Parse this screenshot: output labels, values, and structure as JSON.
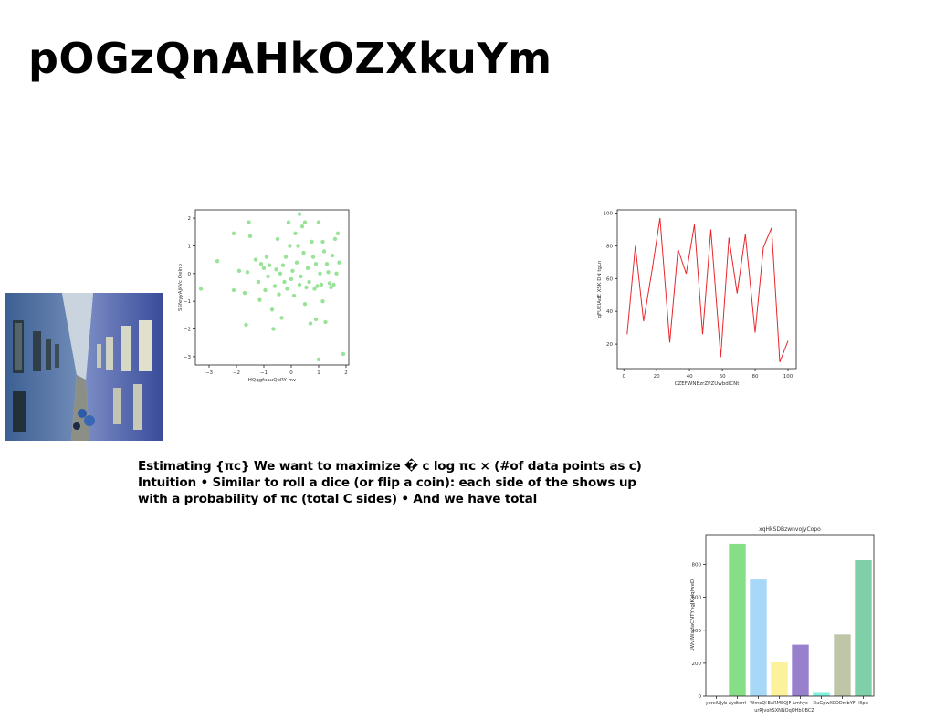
{
  "slide": {
    "title": "pOGzQnAHkOZXkuYm",
    "body_text": "Estimating {πc} We want to maximize � c log πc × (#of data points as c) Intuition • Similar to roll a dice (or flip a coin): each side of the shows up with a probability of πc (total C sides) • And we have total"
  },
  "colors": {
    "scatter_point": "#7fdc7f",
    "line": "#e8262b",
    "bars": [
      "#7fd0a8",
      "#86df86",
      "#a8d8f8",
      "#fbf29b",
      "#9880cc",
      "#7df2dc",
      "#bfc6a8"
    ]
  },
  "chart_data": [
    {
      "type": "scatter",
      "title": "",
      "xlabel": "HQqgfxauQpRY mv",
      "ylabel": "SSfeyyAjkVc Qelnb",
      "xlim": [
        -3.5,
        2.1
      ],
      "ylim": [
        -3.3,
        2.3
      ],
      "xticks": [
        -3,
        -2,
        -1,
        0,
        1,
        2
      ],
      "yticks": [
        -3,
        -2,
        -1,
        0,
        1,
        2
      ],
      "xtick_labels": [
        "−3",
        "−2",
        "−1",
        "0",
        "1",
        "2"
      ],
      "ytick_labels": [
        "−3",
        "−2",
        "−1",
        "0",
        "1",
        "2"
      ],
      "points": [
        [
          -3.3,
          -0.55
        ],
        [
          -2.7,
          0.45
        ],
        [
          -2.1,
          1.45
        ],
        [
          -2.1,
          -0.6
        ],
        [
          -1.9,
          0.1
        ],
        [
          -1.7,
          -0.7
        ],
        [
          -1.65,
          -1.85
        ],
        [
          -1.6,
          0.05
        ],
        [
          -1.5,
          1.35
        ],
        [
          -1.55,
          1.85
        ],
        [
          -1.3,
          0.5
        ],
        [
          -1.2,
          -0.3
        ],
        [
          -1.15,
          -0.95
        ],
        [
          -1.1,
          0.35
        ],
        [
          -1.0,
          0.2
        ],
        [
          -0.95,
          -0.6
        ],
        [
          -0.9,
          0.6
        ],
        [
          -0.85,
          -0.1
        ],
        [
          -0.8,
          0.3
        ],
        [
          -0.7,
          -1.3
        ],
        [
          -0.65,
          -2.0
        ],
        [
          -0.6,
          -0.45
        ],
        [
          -0.55,
          0.15
        ],
        [
          -0.5,
          1.25
        ],
        [
          -0.45,
          -0.75
        ],
        [
          -0.4,
          0.0
        ],
        [
          -0.35,
          -1.6
        ],
        [
          -0.3,
          0.3
        ],
        [
          -0.25,
          -0.3
        ],
        [
          -0.2,
          0.6
        ],
        [
          -0.15,
          -0.55
        ],
        [
          -0.1,
          1.85
        ],
        [
          -0.05,
          1.0
        ],
        [
          0.0,
          -0.2
        ],
        [
          0.05,
          0.1
        ],
        [
          0.1,
          -0.8
        ],
        [
          0.15,
          1.45
        ],
        [
          0.2,
          0.4
        ],
        [
          0.25,
          1.0
        ],
        [
          0.3,
          -0.4
        ],
        [
          0.3,
          2.15
        ],
        [
          0.35,
          -0.1
        ],
        [
          0.4,
          1.7
        ],
        [
          0.45,
          0.75
        ],
        [
          0.5,
          -1.1
        ],
        [
          0.5,
          1.85
        ],
        [
          0.55,
          -0.5
        ],
        [
          0.6,
          0.2
        ],
        [
          0.65,
          -0.3
        ],
        [
          0.7,
          -1.8
        ],
        [
          0.75,
          1.15
        ],
        [
          0.8,
          0.6
        ],
        [
          0.85,
          -0.55
        ],
        [
          0.9,
          -1.65
        ],
        [
          0.9,
          0.35
        ],
        [
          0.95,
          -0.45
        ],
        [
          1.0,
          1.85
        ],
        [
          1.0,
          -3.1
        ],
        [
          1.05,
          0.0
        ],
        [
          1.1,
          -0.4
        ],
        [
          1.15,
          -1.0
        ],
        [
          1.15,
          1.15
        ],
        [
          1.2,
          0.8
        ],
        [
          1.25,
          -1.75
        ],
        [
          1.3,
          0.35
        ],
        [
          1.35,
          0.05
        ],
        [
          1.4,
          -0.35
        ],
        [
          1.45,
          -0.5
        ],
        [
          1.5,
          0.65
        ],
        [
          1.55,
          -0.4
        ],
        [
          1.6,
          1.25
        ],
        [
          1.65,
          0.0
        ],
        [
          1.75,
          0.4
        ],
        [
          1.7,
          1.45
        ],
        [
          1.9,
          -2.9
        ]
      ]
    },
    {
      "type": "line",
      "title": "",
      "xlabel": "CZEFWNBzrZPZUwbdlCNt",
      "ylabel": "qFUEIAdE XSK DN tgLn",
      "xlim": [
        -4,
        105
      ],
      "ylim": [
        5,
        102
      ],
      "xticks": [
        0,
        20,
        40,
        60,
        80,
        100
      ],
      "yticks": [
        20,
        40,
        60,
        80,
        100
      ],
      "x": [
        2,
        7,
        12,
        17,
        22,
        28,
        33,
        38,
        43,
        48,
        53,
        59,
        64,
        69,
        74,
        80,
        85,
        90,
        95,
        100
      ],
      "y": [
        26,
        80,
        34,
        64,
        97,
        21,
        78,
        63,
        93,
        26,
        90,
        12,
        85,
        51,
        87,
        27,
        79,
        91,
        9,
        22
      ]
    },
    {
      "type": "bar",
      "title": "xqHkSDBzwnvoJyCopo",
      "xlabel": "",
      "ylabel": "UWvlWxHaCNTYngJKIdqlweD",
      "ylim": [
        0,
        980
      ],
      "yticks": [
        0,
        200,
        400,
        600,
        800
      ],
      "categories": [
        "ybrxiUJyb",
        "Aydtcrrl",
        "WmeQl",
        "EARMSQJF",
        "Lmhyc",
        "DuGpw",
        "XCODmbYF",
        "lllpu"
      ],
      "tick_labels_row1": [
        "ybrxiUJyb",
        "Aydtcrrl",
        "WmeQl",
        "EARMSQJF",
        "Lmhyc",
        "DuGpw",
        "XCODmbYF",
        "lllpu"
      ],
      "tick_labels_row2": "urRJvohSXNNOqOHbQBCZ",
      "values": [
        0,
        925,
        708,
        205,
        312,
        25,
        375,
        825
      ]
    }
  ]
}
